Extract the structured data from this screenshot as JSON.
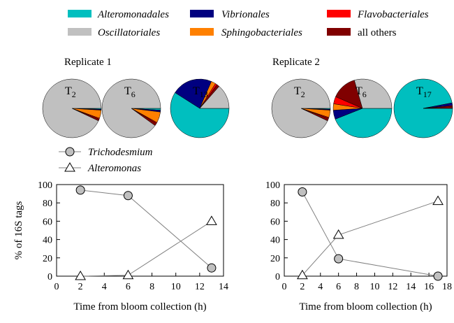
{
  "colors": {
    "Alteromonadales": "#00bfbf",
    "Oscillatoriales": "#c0c0c0",
    "Vibrionales": "#000080",
    "Sphingobacteriales": "#ff8000",
    "Flavobacteriales": "#ff0000",
    "all others": "#800000",
    "line": "#808080",
    "circle_fill": "#c0c0c0"
  },
  "legend": [
    {
      "name": "Alteromonadales",
      "italic": true
    },
    {
      "name": "Oscillatoriales",
      "italic": true
    },
    {
      "name": "Vibrionales",
      "italic": true
    },
    {
      "name": "Sphingobacteriales",
      "italic": true
    },
    {
      "name": "Flavobacteriales",
      "italic": true
    },
    {
      "name": "all others",
      "italic": false
    }
  ],
  "replicates": [
    {
      "title": "Replicate 1",
      "pies": [
        {
          "label_main": "T",
          "label_sub": "2",
          "slices": {
            "Alteromonadales": 0.5,
            "Vibrionales": 0.5,
            "Sphingobacteriales": 4.5,
            "Flavobacteriales": 0.5,
            "all others": 1.0,
            "Oscillatoriales": 93.0
          }
        },
        {
          "label_main": "T",
          "label_sub": "6",
          "slices": {
            "Alteromonadales": 1.0,
            "Vibrionales": 1.0,
            "Sphingobacteriales": 6.0,
            "Flavobacteriales": 0.5,
            "all others": 1.5,
            "Oscillatoriales": 90.0
          }
        },
        {
          "label_main": "T",
          "label_sub": "13",
          "slices": {
            "Alteromonadales": 59.0,
            "Vibrionales": 22.5,
            "Sphingobacteriales": 2.5,
            "Flavobacteriales": 1.0,
            "all others": 1.5,
            "Oscillatoriales": 13.5
          }
        }
      ]
    },
    {
      "title": "Replicate 2",
      "pies": [
        {
          "label_main": "T",
          "label_sub": "2",
          "slices": {
            "Alteromonadales": 0.5,
            "Vibrionales": 0.5,
            "Sphingobacteriales": 4.0,
            "Flavobacteriales": 0.5,
            "all others": 1.5,
            "Oscillatoriales": 93.0
          }
        },
        {
          "label_main": "T",
          "label_sub": "6",
          "slices": {
            "Alteromonadales": 44.0,
            "Vibrionales": 5.0,
            "Sphingobacteriales": 3.5,
            "Flavobacteriales": 4.0,
            "all others": 14.0,
            "Oscillatoriales": 29.5
          }
        },
        {
          "label_main": "T",
          "label_sub": "17",
          "slices": {
            "Alteromonadales": 97.0,
            "Vibrionales": 1.5,
            "Sphingobacteriales": 0.0,
            "Flavobacteriales": 0.5,
            "all others": 1.0,
            "Oscillatoriales": 0.0
          }
        }
      ]
    }
  ],
  "line_legend": [
    {
      "name": "Trichodesmium",
      "marker": "circle"
    },
    {
      "name": "Alteromonas",
      "marker": "triangle"
    }
  ],
  "chart_data": [
    {
      "type": "line",
      "xlabel": "Time from bloom collection (h)",
      "ylabel": "% of 16S tags",
      "xlim": [
        0,
        14
      ],
      "ylim": [
        0,
        100
      ],
      "xticks": [
        0,
        2,
        4,
        6,
        8,
        10,
        12,
        14
      ],
      "yticks": [
        0,
        20,
        40,
        60,
        80,
        100
      ],
      "series": [
        {
          "name": "Trichodesmium",
          "marker": "circle",
          "x": [
            2,
            6,
            13
          ],
          "y": [
            94,
            88,
            9
          ]
        },
        {
          "name": "Alteromonas",
          "marker": "triangle",
          "x": [
            2,
            6,
            13
          ],
          "y": [
            0,
            1,
            60
          ]
        }
      ]
    },
    {
      "type": "line",
      "xlabel": "Time from bloom collection (h)",
      "ylabel": "",
      "xlim": [
        0,
        18
      ],
      "ylim": [
        0,
        100
      ],
      "xticks": [
        0,
        2,
        4,
        6,
        8,
        10,
        12,
        14,
        16,
        18
      ],
      "yticks": [
        0,
        20,
        40,
        60,
        80,
        100
      ],
      "series": [
        {
          "name": "Trichodesmium",
          "marker": "circle",
          "x": [
            2,
            6,
            17
          ],
          "y": [
            92,
            19,
            0
          ]
        },
        {
          "name": "Alteromonas",
          "marker": "triangle",
          "x": [
            2,
            6,
            17
          ],
          "y": [
            1,
            45,
            82
          ]
        }
      ]
    }
  ]
}
